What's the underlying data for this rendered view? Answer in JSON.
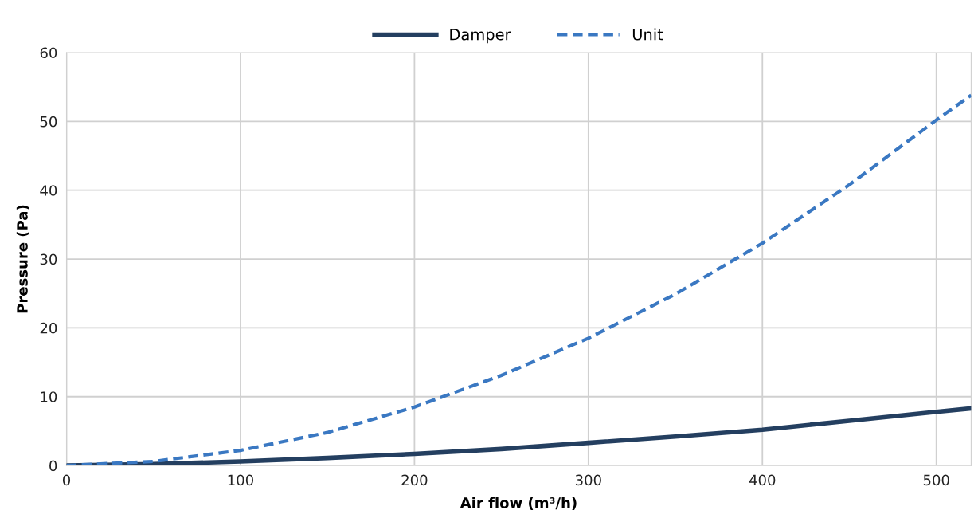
{
  "chart_data": {
    "type": "line",
    "xlabel": "Air flow (m³/h)",
    "ylabel": "Pressure (Pa)",
    "xlim": [
      0,
      520
    ],
    "xticks": [
      0,
      100,
      200,
      300,
      400,
      500
    ],
    "ylim": [
      0,
      60
    ],
    "yticks": [
      0,
      10,
      20,
      30,
      40,
      50,
      60
    ],
    "grid": true,
    "legend": "top",
    "marker": "none",
    "series": [
      {
        "name": "Damper",
        "color": "#243f60",
        "line_style": "solid",
        "x": [
          0,
          50,
          100,
          150,
          200,
          250,
          300,
          350,
          400,
          450,
          500,
          520
        ],
        "values": [
          0,
          0.2,
          0.6,
          1.1,
          1.7,
          2.4,
          3.3,
          4.2,
          5.2,
          6.5,
          7.8,
          8.3
        ]
      },
      {
        "name": "Unit",
        "color": "#3a78c2",
        "line_style": "dashed",
        "x": [
          0,
          50,
          100,
          150,
          200,
          250,
          300,
          350,
          400,
          450,
          500,
          520
        ],
        "values": [
          0,
          0.6,
          2.2,
          4.8,
          8.5,
          13.1,
          18.5,
          24.9,
          32.3,
          40.8,
          50.2,
          53.8
        ]
      }
    ]
  }
}
